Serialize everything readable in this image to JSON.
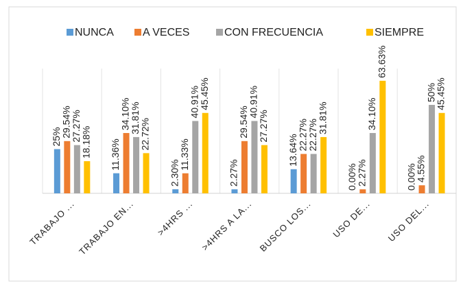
{
  "chart_data": {
    "type": "bar",
    "categories": [
      "TRABAJO ...",
      "TRABAJO EN...",
      ">4HRS ...",
      ">4HRS A LA...",
      "BUSCO LOS...",
      "USO DE...",
      "USO DEL..."
    ],
    "series": [
      {
        "name": "NUNCA",
        "color": "#5b9bd5",
        "values": [
          25,
          11.36,
          2.3,
          2.27,
          13.64,
          0,
          0
        ],
        "value_labels": [
          "25%",
          "11.36%",
          "2.30%",
          "2.27%",
          "13.64%",
          "0.00%",
          "0.00%"
        ]
      },
      {
        "name": "A VECES",
        "color": "#ed7d31",
        "values": [
          29.54,
          34.1,
          11.33,
          29.54,
          22.27,
          2.27,
          4.55
        ],
        "value_labels": [
          "29.54%",
          "34.10%",
          "11.33%",
          "29.54%",
          "22.27%",
          "2.27%",
          "4.55%"
        ]
      },
      {
        "name": "CON FRECUENCIA",
        "color": "#a5a5a5",
        "values": [
          27.27,
          31.81,
          40.91,
          40.91,
          22.27,
          34.1,
          50
        ],
        "value_labels": [
          "27.27%",
          "31.81%",
          "40.91%",
          "40.91%",
          "22.27%",
          "34.10%",
          "50%"
        ]
      },
      {
        "name": "SIEMPRE",
        "color": "#ffc000",
        "values": [
          18.18,
          22.72,
          45.45,
          27.27,
          31.81,
          63.63,
          45.45
        ],
        "value_labels": [
          "18.18%",
          "22.72%",
          "45.45%",
          "27.27%",
          "31.81%",
          "63.63%",
          "45.45%"
        ]
      }
    ]
  }
}
